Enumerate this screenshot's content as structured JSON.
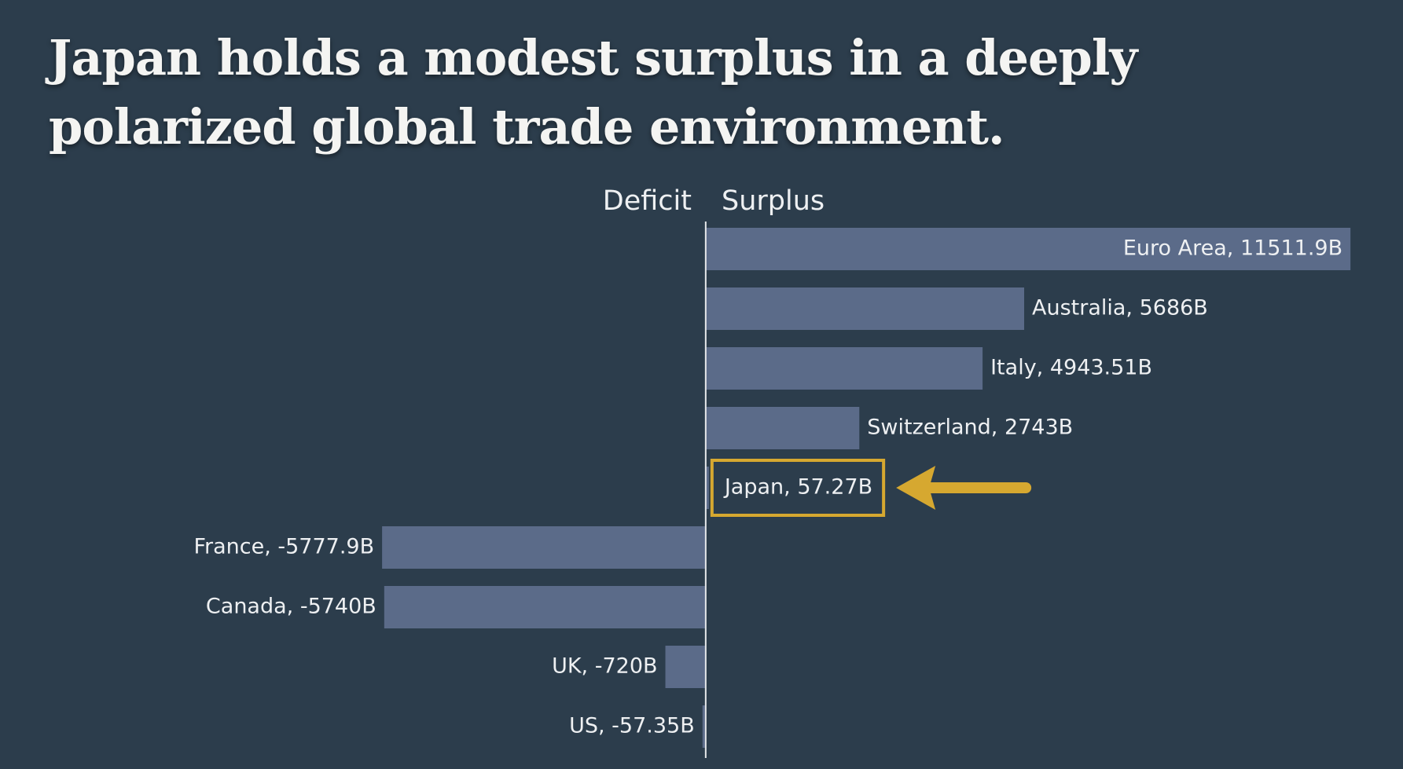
{
  "chart_data": {
    "type": "diverging-bar",
    "title": "Japan holds a modest surplus in a deeply polarized global trade environment.",
    "negative_label": "Deficit",
    "positive_label": "Surplus",
    "values": [
      11511.9,
      5686,
      4943.51,
      2743,
      57.27,
      -5777.9,
      -5740,
      -720,
      -57.35
    ],
    "value_labels": [
      "Euro Area, 11511.9B",
      "Australia, 5686B",
      "Italy, 4943.51B",
      "Switzerland, 2743B",
      "Japan, 57.27B",
      "France, -5777.9B",
      "Canada, -5740B",
      "UK, -720B",
      "US, -57.35B"
    ],
    "xlim": [
      -12600,
      12450
    ],
    "color": "#5b6b89",
    "highlight": 4,
    "highlight_color": "#d6a830"
  }
}
